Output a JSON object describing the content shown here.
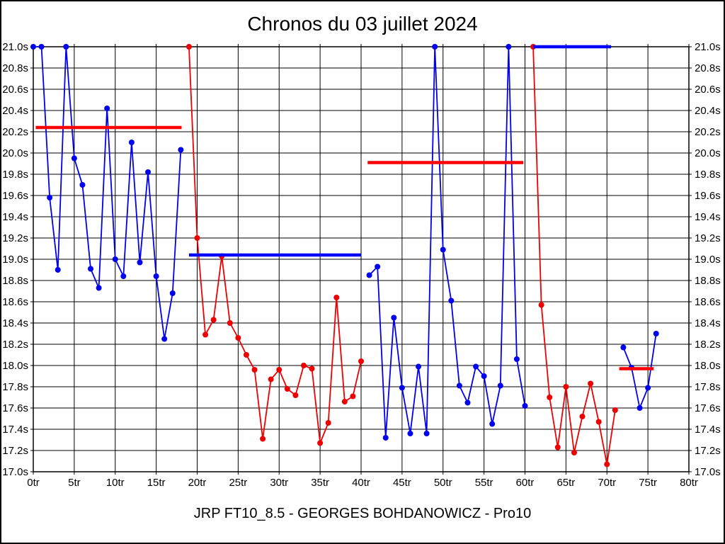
{
  "title": "Chronos du 03 juillet 2024",
  "subtitle": "JRP FT10_8.5 - GEORGES BOHDANOWICZ - Pro10",
  "colors": {
    "background": "#ffffff",
    "grid": "#000000",
    "blue_series": "#0000ee",
    "red_series": "#ee0000",
    "blue_reference": "#0000ff",
    "red_reference": "#ff0000"
  },
  "axes": {
    "x": {
      "min": 0,
      "max": 80,
      "tick_step": 5,
      "unit": "tr",
      "tick_labels": [
        "0tr",
        "5tr",
        "10tr",
        "15tr",
        "20tr",
        "25tr",
        "30tr",
        "35tr",
        "40tr",
        "45tr",
        "50tr",
        "55tr",
        "60tr",
        "65tr",
        "70tr",
        "75tr",
        "80tr"
      ]
    },
    "y": {
      "min": 17.0,
      "max": 21.0,
      "tick_step": 0.2,
      "unit": "s",
      "tick_labels_top_to_bottom": [
        "21.0s",
        "20.8s",
        "20.6s",
        "20.4s",
        "20.2s",
        "20.0s",
        "19.8s",
        "19.6s",
        "19.4s",
        "19.2s",
        "19.0s",
        "18.8s",
        "18.6s",
        "18.4s",
        "18.2s",
        "18.0s",
        "17.8s",
        "17.6s",
        "17.4s",
        "17.2s",
        "17.0s"
      ],
      "labels_on_both_sides": true
    }
  },
  "chart_data": {
    "type": "line",
    "title": "Chronos du 03 juillet 2024",
    "xlabel_unit": "laps (tr)",
    "ylabel_unit": "lap time (s)",
    "xlim": [
      0,
      80
    ],
    "ylim": [
      17.0,
      21.0
    ],
    "grid": true,
    "marker": "dot",
    "series": [
      {
        "name": "stint-1-laps",
        "color_key": "blue_series",
        "points": [
          [
            0,
            21.0
          ],
          [
            1,
            21.0
          ],
          [
            2,
            19.58
          ],
          [
            3,
            18.9
          ],
          [
            4,
            21.0
          ],
          [
            5,
            19.95
          ],
          [
            6,
            19.7
          ],
          [
            7,
            18.91
          ],
          [
            8,
            18.73
          ],
          [
            9,
            20.42
          ],
          [
            10,
            19.0
          ],
          [
            11,
            18.84
          ],
          [
            12,
            20.1
          ],
          [
            13,
            18.97
          ],
          [
            14,
            19.82
          ],
          [
            15,
            18.84
          ],
          [
            16,
            18.25
          ],
          [
            17,
            18.68
          ],
          [
            18,
            20.03
          ]
        ]
      },
      {
        "name": "stint-2-laps",
        "color_key": "red_series",
        "points": [
          [
            19,
            21.0
          ],
          [
            20,
            19.2
          ],
          [
            21,
            18.29
          ],
          [
            22,
            18.43
          ],
          [
            23,
            19.03
          ],
          [
            24,
            18.4
          ],
          [
            25,
            18.26
          ],
          [
            26,
            18.1
          ],
          [
            27,
            17.96
          ],
          [
            28,
            17.31
          ],
          [
            29,
            17.87
          ],
          [
            30,
            17.96
          ],
          [
            31,
            17.78
          ],
          [
            32,
            17.72
          ],
          [
            33,
            18.0
          ],
          [
            34,
            17.97
          ],
          [
            35,
            17.27
          ],
          [
            36,
            17.46
          ],
          [
            37,
            18.64
          ],
          [
            38,
            17.66
          ],
          [
            39,
            17.71
          ],
          [
            40,
            18.04
          ]
        ]
      },
      {
        "name": "stint-3-laps",
        "color_key": "blue_series",
        "points": [
          [
            41,
            18.85
          ],
          [
            42,
            18.93
          ],
          [
            43,
            17.32
          ],
          [
            44,
            18.45
          ],
          [
            45,
            17.79
          ],
          [
            46,
            17.36
          ],
          [
            47,
            17.99
          ],
          [
            48,
            17.36
          ],
          [
            49,
            21.0
          ],
          [
            50,
            19.09
          ],
          [
            51,
            18.61
          ],
          [
            52,
            17.81
          ],
          [
            53,
            17.65
          ],
          [
            54,
            17.99
          ],
          [
            55,
            17.9
          ],
          [
            56,
            17.45
          ],
          [
            57,
            17.81
          ],
          [
            58,
            21.0
          ],
          [
            59,
            18.06
          ],
          [
            60,
            17.62
          ]
        ]
      },
      {
        "name": "stint-4-laps",
        "color_key": "red_series",
        "points": [
          [
            61,
            21.0
          ],
          [
            62,
            18.57
          ],
          [
            63,
            17.7
          ],
          [
            64,
            17.23
          ],
          [
            65,
            17.8
          ],
          [
            66,
            17.18
          ],
          [
            67,
            17.52
          ],
          [
            68,
            17.83
          ],
          [
            69,
            17.47
          ],
          [
            70,
            17.07
          ],
          [
            71,
            17.58
          ]
        ]
      },
      {
        "name": "stint-5-laps",
        "color_key": "blue_series",
        "points": [
          [
            72,
            18.17
          ],
          [
            73,
            17.98
          ],
          [
            74,
            17.6
          ],
          [
            75,
            17.79
          ],
          [
            76,
            18.3
          ]
        ]
      }
    ],
    "reference_lines": [
      {
        "name": "stint-1-average",
        "color_key": "red_reference",
        "y": 20.24,
        "x_start": 0.3,
        "x_end": 18.1
      },
      {
        "name": "stint-2-average",
        "color_key": "blue_reference",
        "y": 19.04,
        "x_start": 19.0,
        "x_end": 40.0
      },
      {
        "name": "stint-3-average",
        "color_key": "red_reference",
        "y": 19.91,
        "x_start": 40.8,
        "x_end": 59.8
      },
      {
        "name": "stint-4-average",
        "color_key": "blue_reference",
        "y": 21.0,
        "x_start": 61.0,
        "x_end": 70.5
      },
      {
        "name": "stint-5-average",
        "color_key": "red_reference",
        "y": 17.97,
        "x_start": 71.5,
        "x_end": 75.7
      }
    ]
  }
}
